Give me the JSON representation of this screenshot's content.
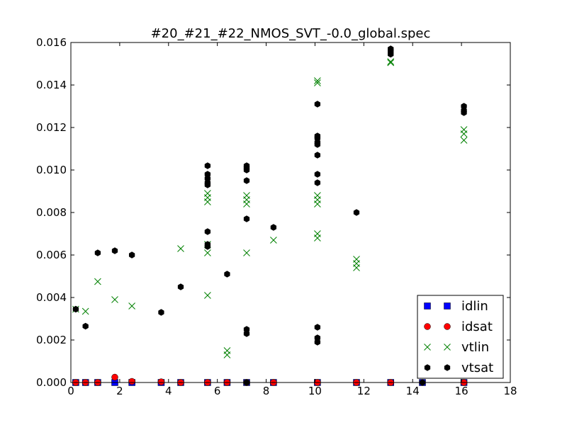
{
  "chart_data": {
    "type": "scatter",
    "title": "#20_#21_#22_NMOS_SVT_-0.0_global.spec",
    "xlabel": "",
    "ylabel": "",
    "xlim": [
      0,
      18
    ],
    "ylim": [
      0,
      0.016
    ],
    "x_ticks": [
      "0",
      "2",
      "4",
      "6",
      "8",
      "10",
      "12",
      "14",
      "16",
      "18"
    ],
    "y_ticks": [
      "0.000",
      "0.002",
      "0.004",
      "0.006",
      "0.008",
      "0.010",
      "0.012",
      "0.014",
      "0.016"
    ],
    "legend_position": "lower right",
    "series": [
      {
        "name": "idlin",
        "marker": "square",
        "color": "#0000ff",
        "points": [
          [
            0.2,
            0
          ],
          [
            0.6,
            0
          ],
          [
            1.1,
            0
          ],
          [
            1.8,
            0
          ],
          [
            2.5,
            0
          ],
          [
            3.7,
            0
          ],
          [
            4.5,
            0
          ],
          [
            5.6,
            0
          ],
          [
            6.4,
            0
          ],
          [
            7.2,
            0
          ],
          [
            8.3,
            0
          ],
          [
            10.1,
            0
          ],
          [
            11.7,
            0
          ],
          [
            13.1,
            0
          ],
          [
            14.4,
            0
          ],
          [
            16.1,
            0
          ]
        ]
      },
      {
        "name": "idsat",
        "marker": "circle",
        "color": "#ff0000",
        "points": [
          [
            0.2,
            0
          ],
          [
            0.6,
            0
          ],
          [
            1.1,
            0
          ],
          [
            1.8,
            0.00025
          ],
          [
            2.5,
            5e-05
          ],
          [
            3.7,
            3e-05
          ],
          [
            4.5,
            0
          ],
          [
            5.6,
            0
          ],
          [
            6.4,
            0
          ],
          [
            7.2,
            0
          ],
          [
            8.3,
            0
          ],
          [
            10.1,
            0
          ],
          [
            11.7,
            0
          ],
          [
            13.1,
            0
          ],
          [
            16.1,
            0
          ]
        ]
      },
      {
        "name": "vtlin",
        "marker": "x",
        "color": "#008000",
        "points": [
          [
            0.2,
            0.00345
          ],
          [
            0.6,
            0.00335
          ],
          [
            1.1,
            0.00475
          ],
          [
            1.8,
            0.0039
          ],
          [
            2.5,
            0.0036
          ],
          [
            4.5,
            0.0063
          ],
          [
            5.6,
            0.0041
          ],
          [
            5.6,
            0.0061
          ],
          [
            5.6,
            0.0065
          ],
          [
            5.6,
            0.0085
          ],
          [
            5.6,
            0.0087
          ],
          [
            5.6,
            0.0089
          ],
          [
            6.4,
            0.0013
          ],
          [
            6.4,
            0.0015
          ],
          [
            7.2,
            0.0061
          ],
          [
            7.2,
            0.0084
          ],
          [
            7.2,
            0.0086
          ],
          [
            7.2,
            0.0088
          ],
          [
            8.3,
            0.0067
          ],
          [
            10.1,
            0.0068
          ],
          [
            10.1,
            0.007
          ],
          [
            10.1,
            0.0084
          ],
          [
            10.1,
            0.0086
          ],
          [
            10.1,
            0.0088
          ],
          [
            10.1,
            0.0141
          ],
          [
            10.1,
            0.0142
          ],
          [
            11.7,
            0.0054
          ],
          [
            11.7,
            0.0056
          ],
          [
            11.7,
            0.0058
          ],
          [
            13.1,
            0.01505
          ],
          [
            13.1,
            0.0151
          ],
          [
            16.1,
            0.0114
          ],
          [
            16.1,
            0.0117
          ],
          [
            16.1,
            0.0119
          ]
        ]
      },
      {
        "name": "vtsat",
        "marker": "hexagon",
        "color": "#000000",
        "points": [
          [
            0.2,
            0.00345
          ],
          [
            0.6,
            0.00265
          ],
          [
            1.1,
            0.0061
          ],
          [
            1.8,
            0.0062
          ],
          [
            2.5,
            0.006
          ],
          [
            3.7,
            0.0033
          ],
          [
            4.5,
            0.0045
          ],
          [
            5.6,
            0.0064
          ],
          [
            5.6,
            0.0065
          ],
          [
            5.6,
            0.0071
          ],
          [
            5.6,
            0.0093
          ],
          [
            5.6,
            0.0094
          ],
          [
            5.6,
            0.0096
          ],
          [
            5.6,
            0.0098
          ],
          [
            5.6,
            0.0102
          ],
          [
            6.4,
            0.0051
          ],
          [
            7.2,
            0.0
          ],
          [
            7.2,
            0.0023
          ],
          [
            7.2,
            0.0025
          ],
          [
            7.2,
            0.0077
          ],
          [
            7.2,
            0.0095
          ],
          [
            7.2,
            0.01
          ],
          [
            7.2,
            0.0101
          ],
          [
            7.2,
            0.0102
          ],
          [
            8.3,
            0.0073
          ],
          [
            10.1,
            0.0019
          ],
          [
            10.1,
            0.0021
          ],
          [
            10.1,
            0.0026
          ],
          [
            10.1,
            0.0094
          ],
          [
            10.1,
            0.0098
          ],
          [
            10.1,
            0.0107
          ],
          [
            10.1,
            0.0112
          ],
          [
            10.1,
            0.0113
          ],
          [
            10.1,
            0.0115
          ],
          [
            10.1,
            0.0116
          ],
          [
            10.1,
            0.0131
          ],
          [
            11.7,
            0.008
          ],
          [
            13.1,
            0.01545
          ],
          [
            13.1,
            0.0156
          ],
          [
            13.1,
            0.0157
          ],
          [
            14.4,
            0.0
          ],
          [
            16.1,
            0.0127
          ],
          [
            16.1,
            0.0128
          ],
          [
            16.1,
            0.013
          ]
        ]
      }
    ]
  }
}
